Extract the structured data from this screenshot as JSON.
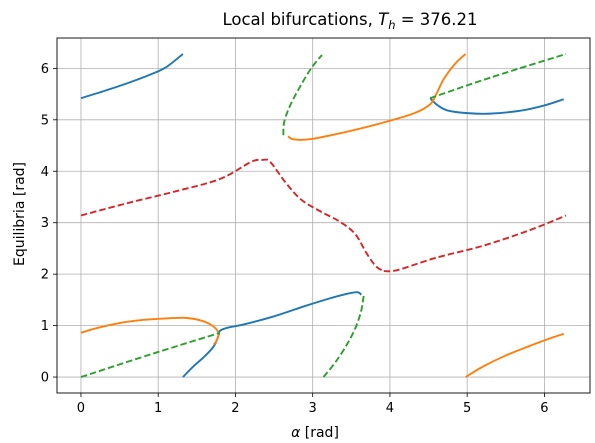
{
  "chart_data": {
    "type": "line",
    "title": "Local bifurcations, T_h = 376.21",
    "title_parts": {
      "prefix": "Local bifurcations, ",
      "symbol": "T",
      "subscript": "h",
      "suffix": " = 376.21"
    },
    "xlabel": "α [rad]",
    "xlabel_parts": {
      "symbol": "α",
      "unit": " [rad]"
    },
    "ylabel": "Equilibria [rad]",
    "xlim": [
      -0.31,
      6.59
    ],
    "ylim": [
      -0.31,
      6.59
    ],
    "xticks": [
      "0",
      "1",
      "2",
      "3",
      "4",
      "5",
      "6"
    ],
    "yticks": [
      "0",
      "1",
      "2",
      "3",
      "4",
      "5",
      "6"
    ],
    "grid": true,
    "colors": {
      "blue": "#1f77b4",
      "orange": "#ff7f0e",
      "green": "#2ca02c",
      "red": "#d62728"
    },
    "series": [
      {
        "id": "blue-top-left",
        "color": "blue",
        "style": "solid",
        "points": [
          [
            0.0,
            5.42
          ],
          [
            0.3,
            5.56
          ],
          [
            0.6,
            5.71
          ],
          [
            0.9,
            5.88
          ],
          [
            1.1,
            6.02
          ],
          [
            1.32,
            6.28
          ]
        ]
      },
      {
        "id": "blue-middle",
        "color": "blue",
        "style": "solid",
        "points": [
          [
            1.32,
            0.0
          ],
          [
            1.45,
            0.2
          ],
          [
            1.6,
            0.4
          ],
          [
            1.72,
            0.6
          ],
          [
            1.78,
            0.8
          ],
          [
            1.8,
            0.9
          ],
          [
            1.9,
            0.96
          ],
          [
            2.1,
            1.02
          ],
          [
            2.5,
            1.18
          ],
          [
            2.9,
            1.38
          ],
          [
            3.2,
            1.52
          ],
          [
            3.45,
            1.62
          ],
          [
            3.58,
            1.65
          ],
          [
            3.63,
            1.6
          ]
        ]
      },
      {
        "id": "blue-top-right",
        "color": "blue",
        "style": "solid",
        "points": [
          [
            4.52,
            5.42
          ],
          [
            4.62,
            5.28
          ],
          [
            4.75,
            5.18
          ],
          [
            5.0,
            5.13
          ],
          [
            5.3,
            5.12
          ],
          [
            5.7,
            5.18
          ],
          [
            6.0,
            5.28
          ],
          [
            6.25,
            5.4
          ]
        ]
      },
      {
        "id": "orange-bottom-left",
        "color": "orange",
        "style": "solid",
        "points": [
          [
            0.0,
            0.86
          ],
          [
            0.2,
            0.95
          ],
          [
            0.5,
            1.05
          ],
          [
            0.8,
            1.11
          ],
          [
            1.1,
            1.14
          ],
          [
            1.35,
            1.15
          ],
          [
            1.55,
            1.1
          ],
          [
            1.7,
            1.0
          ],
          [
            1.78,
            0.86
          ],
          [
            1.76,
            0.72
          ],
          [
            1.72,
            0.63
          ]
        ]
      },
      {
        "id": "orange-top-middle",
        "color": "orange",
        "style": "solid",
        "points": [
          [
            2.68,
            4.68
          ],
          [
            2.75,
            4.62
          ],
          [
            2.95,
            4.62
          ],
          [
            3.3,
            4.72
          ],
          [
            3.8,
            4.9
          ],
          [
            4.3,
            5.12
          ],
          [
            4.52,
            5.3
          ],
          [
            4.6,
            5.5
          ],
          [
            4.7,
            5.8
          ],
          [
            4.85,
            6.1
          ],
          [
            4.98,
            6.28
          ]
        ]
      },
      {
        "id": "orange-bottom-right",
        "color": "orange",
        "style": "solid",
        "points": [
          [
            4.98,
            0.0
          ],
          [
            5.2,
            0.2
          ],
          [
            5.5,
            0.42
          ],
          [
            5.8,
            0.6
          ],
          [
            6.05,
            0.74
          ],
          [
            6.25,
            0.84
          ]
        ]
      },
      {
        "id": "green-bottom-left",
        "color": "green",
        "style": "dashed",
        "points": [
          [
            0.0,
            0.0
          ],
          [
            0.9,
            0.44
          ],
          [
            1.8,
            0.86
          ]
        ]
      },
      {
        "id": "green-upper-left",
        "color": "green",
        "style": "dashed",
        "points": [
          [
            2.62,
            4.7
          ],
          [
            2.63,
            4.95
          ],
          [
            2.7,
            5.25
          ],
          [
            2.82,
            5.6
          ],
          [
            2.98,
            6.0
          ],
          [
            3.12,
            6.26
          ]
        ]
      },
      {
        "id": "green-upper-right",
        "color": "green",
        "style": "dashed",
        "points": [
          [
            4.52,
            5.42
          ],
          [
            5.3,
            5.82
          ],
          [
            6.28,
            6.28
          ]
        ]
      },
      {
        "id": "green-bottom-middle",
        "color": "green",
        "style": "dashed",
        "points": [
          [
            3.14,
            0.0
          ],
          [
            3.3,
            0.3
          ],
          [
            3.45,
            0.65
          ],
          [
            3.56,
            0.98
          ],
          [
            3.63,
            1.3
          ],
          [
            3.66,
            1.58
          ]
        ]
      },
      {
        "id": "red-upper",
        "color": "red",
        "style": "dashed",
        "points": [
          [
            0.0,
            3.14
          ],
          [
            0.6,
            3.38
          ],
          [
            1.2,
            3.6
          ],
          [
            1.8,
            3.85
          ],
          [
            2.2,
            4.18
          ],
          [
            2.35,
            4.22
          ],
          [
            2.45,
            4.18
          ],
          [
            2.65,
            3.78
          ],
          [
            2.85,
            3.45
          ],
          [
            3.1,
            3.22
          ],
          [
            3.35,
            3.02
          ],
          [
            3.55,
            2.78
          ],
          [
            3.7,
            2.4
          ],
          [
            3.82,
            2.15
          ],
          [
            3.92,
            2.06
          ]
        ]
      },
      {
        "id": "red-lower",
        "color": "red",
        "style": "dashed",
        "points": [
          [
            3.92,
            2.06
          ],
          [
            4.1,
            2.08
          ],
          [
            4.6,
            2.32
          ],
          [
            5.2,
            2.55
          ],
          [
            5.8,
            2.85
          ],
          [
            6.28,
            3.14
          ]
        ]
      }
    ]
  }
}
